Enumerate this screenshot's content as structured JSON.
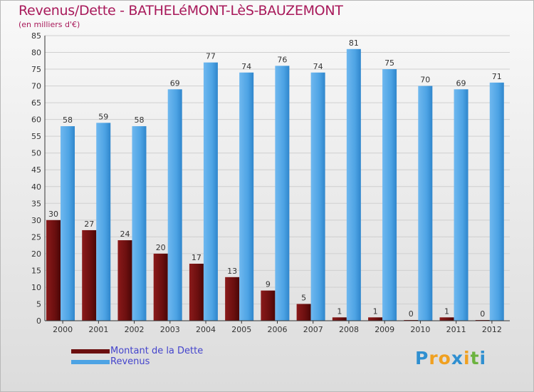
{
  "chart_data": {
    "type": "bar",
    "title": "Revenus/Dette - BATHELéMONT-LèS-BAUZEMONT",
    "subtitle": "(en milliers d'€)",
    "categories": [
      "2000",
      "2001",
      "2002",
      "2003",
      "2004",
      "2005",
      "2006",
      "2007",
      "2008",
      "2009",
      "2010",
      "2011",
      "2012"
    ],
    "series": [
      {
        "name": "Montant de la Dette",
        "color": "#6b0f0f",
        "values": [
          30,
          27,
          24,
          20,
          17,
          13,
          9,
          5,
          1,
          1,
          0,
          1,
          0
        ]
      },
      {
        "name": "Revenus",
        "color": "#4da3e4",
        "values": [
          58,
          59,
          58,
          69,
          77,
          74,
          76,
          74,
          81,
          75,
          70,
          69,
          71
        ]
      }
    ],
    "ylim": [
      0,
      85
    ],
    "yticks": [
      0,
      5,
      10,
      15,
      20,
      25,
      30,
      35,
      40,
      45,
      50,
      55,
      60,
      65,
      70,
      75,
      80,
      85
    ],
    "grid": true,
    "legend_position": "bottom-left"
  },
  "logo": {
    "letters": [
      {
        "ch": "P",
        "color": "#2f8fd0"
      },
      {
        "ch": "r",
        "color": "#f0a020"
      },
      {
        "ch": "o",
        "color": "#f0a020"
      },
      {
        "ch": "x",
        "color": "#2f8fd0"
      },
      {
        "ch": "i",
        "color": "#f0a020"
      },
      {
        "ch": "t",
        "color": "#6cb33f"
      },
      {
        "ch": "i",
        "color": "#2f8fd0"
      }
    ]
  }
}
